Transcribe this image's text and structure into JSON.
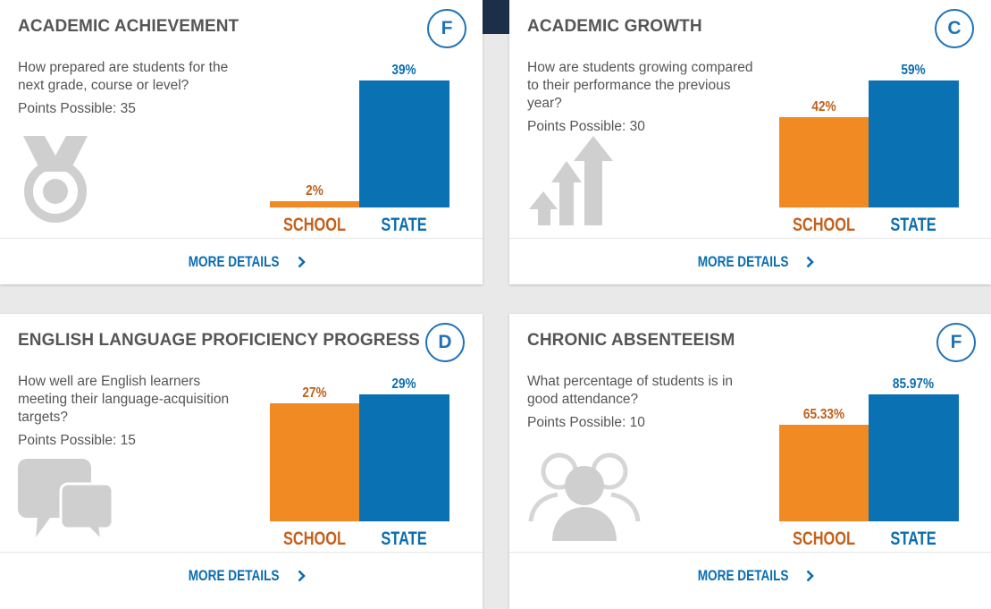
{
  "categories": [
    "SCHOOL",
    "STATE"
  ],
  "colors": {
    "school": "#f28a23",
    "state": "#0a71b3",
    "grade": "#1d72b8"
  },
  "cards": [
    {
      "title": "ACADEMIC ACHIEVEMENT",
      "grade": "F",
      "description": "How prepared are students for the next grade, course or level?",
      "points": "Points Possible: 35",
      "icon": "medal-icon",
      "school_label": "2%",
      "school_value": 2,
      "state_label": "39%",
      "state_value": 39,
      "more": "MORE DETAILS"
    },
    {
      "title": "ACADEMIC GROWTH",
      "grade": "C",
      "description": "How are students growing compared to their performance the previous year?",
      "points": "Points Possible: 30",
      "icon": "growth-arrows-icon",
      "school_label": "42%",
      "school_value": 42,
      "state_label": "59%",
      "state_value": 59,
      "more": "MORE DETAILS"
    },
    {
      "title": "ENGLISH LANGUAGE PROFICIENCY PROGRESS",
      "grade": "D",
      "description": "How well are English learners meeting their language-acquisition targets?",
      "points": "Points Possible: 15",
      "icon": "speech-bubbles-icon",
      "school_label": "27%",
      "school_value": 27,
      "state_label": "29%",
      "state_value": 29,
      "more": "MORE DETAILS"
    },
    {
      "title": "CHRONIC ABSENTEEISM",
      "grade": "F",
      "description": "What percentage of students is in good attendance?",
      "points": "Points Possible: 10",
      "icon": "people-group-icon",
      "school_label": "65.33%",
      "school_value": 65.33,
      "state_label": "85.97%",
      "state_value": 85.97,
      "more": "MORE DETAILS"
    }
  ]
}
